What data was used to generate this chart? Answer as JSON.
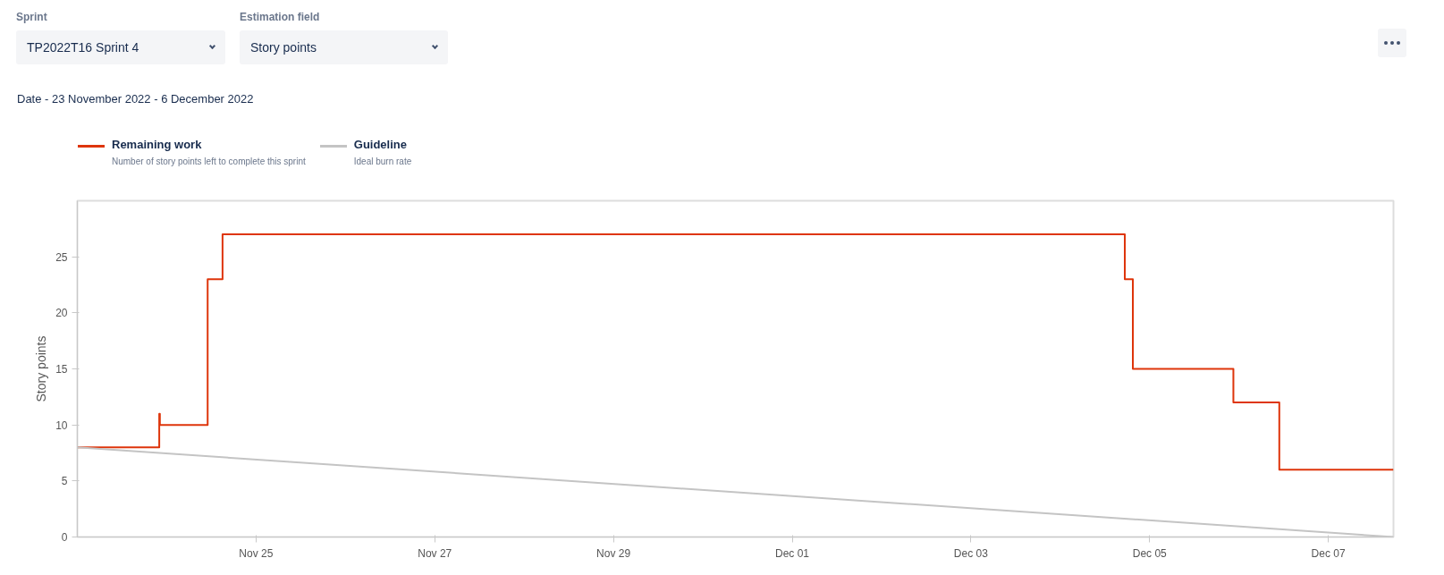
{
  "chart_data": {
    "type": "step",
    "title": "Date - 23 November 2022 - 6 December 2022",
    "ylabel": "Story points",
    "annotations": [
      "Sprint",
      "TP2022T16 Sprint 4",
      "Estimation field",
      "Story points",
      "Number of story points left to complete this sprint",
      "Ideal burn rate"
    ],
    "series": [
      {
        "name": "Remaining work",
        "color": "#de350b",
        "x": [
          "2022-11-23T00:00",
          "2022-11-23T22:00",
          "2022-11-23T22:10",
          "2022-11-24T11:00",
          "2022-11-24T15:00",
          "2022-12-04T17:20",
          "2022-12-04T19:30",
          "2022-12-05T22:30",
          "2022-12-06T10:50",
          "2022-12-07T17:30"
        ],
        "values": [
          8,
          11,
          10,
          23,
          27,
          23,
          15,
          12,
          6,
          6
        ]
      },
      {
        "name": "Guideline",
        "color": "#c4c4c4",
        "type": "line",
        "x": [
          "2022-11-23T00:00",
          "2022-12-07T17:30"
        ],
        "values": [
          8,
          0
        ]
      }
    ],
    "xlim": [
      "2022-11-23T00:00",
      "2022-12-07T17:30"
    ],
    "xticks": [
      {
        "value": "2022-11-25",
        "label": "Nov 25"
      },
      {
        "value": "2022-11-27",
        "label": "Nov 27"
      },
      {
        "value": "2022-11-29",
        "label": "Nov 29"
      },
      {
        "value": "2022-12-01",
        "label": "Dec 01"
      },
      {
        "value": "2022-12-03",
        "label": "Dec 03"
      },
      {
        "value": "2022-12-05",
        "label": "Dec 05"
      },
      {
        "value": "2022-12-07",
        "label": "Dec 07"
      }
    ],
    "ylim": [
      0,
      30
    ],
    "yticks": [
      0,
      5,
      10,
      15,
      20,
      25
    ],
    "legend": "top left",
    "grid": false
  }
}
